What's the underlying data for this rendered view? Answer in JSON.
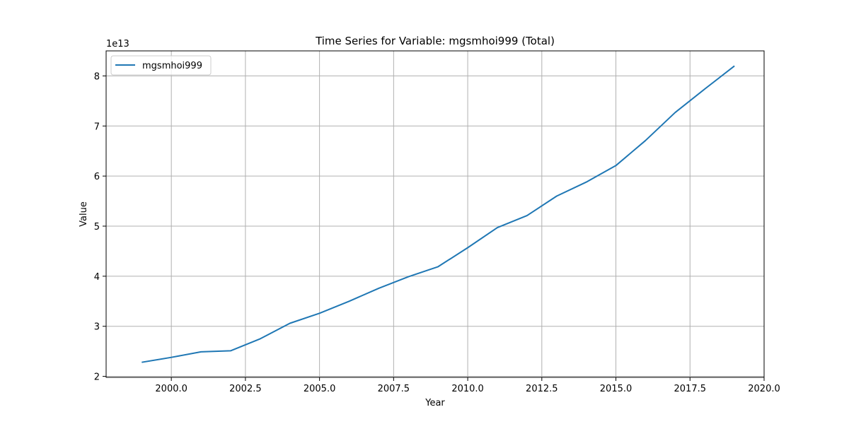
{
  "chart_data": {
    "type": "line",
    "title": "Time Series for Variable: mgsmhoi999 (Total)",
    "xlabel": "Year",
    "ylabel": "Value",
    "y_multiplier_label": "1e13",
    "y_scale": 10000000000000.0,
    "xlim": [
      1997.8,
      2020.0
    ],
    "ylim": [
      1.98,
      8.5
    ],
    "x_ticks": [
      2000.0,
      2002.5,
      2005.0,
      2007.5,
      2010.0,
      2012.5,
      2015.0,
      2017.5,
      2020.0
    ],
    "x_tick_labels": [
      "2000.0",
      "2002.5",
      "2005.0",
      "2007.5",
      "2010.0",
      "2012.5",
      "2015.0",
      "2017.5",
      "2020.0"
    ],
    "y_ticks": [
      2,
      3,
      4,
      5,
      6,
      7,
      8
    ],
    "y_tick_labels": [
      "2",
      "3",
      "4",
      "5",
      "6",
      "7",
      "8"
    ],
    "grid": true,
    "legend_position": "top-left",
    "series": [
      {
        "name": "mgsmhoi999",
        "color": "#1f77b4",
        "x": [
          1999,
          2000,
          2001,
          2002,
          2003,
          2004,
          2005,
          2006,
          2007,
          2008,
          2009,
          2010,
          2011,
          2012,
          2013,
          2014,
          2015,
          2016,
          2017,
          2018,
          2019
        ],
        "y": [
          2.28,
          2.38,
          2.49,
          2.51,
          2.75,
          3.06,
          3.26,
          3.5,
          3.76,
          3.99,
          4.19,
          4.57,
          4.97,
          5.21,
          5.6,
          5.88,
          6.21,
          6.71,
          7.27,
          7.74,
          8.2
        ]
      }
    ]
  }
}
